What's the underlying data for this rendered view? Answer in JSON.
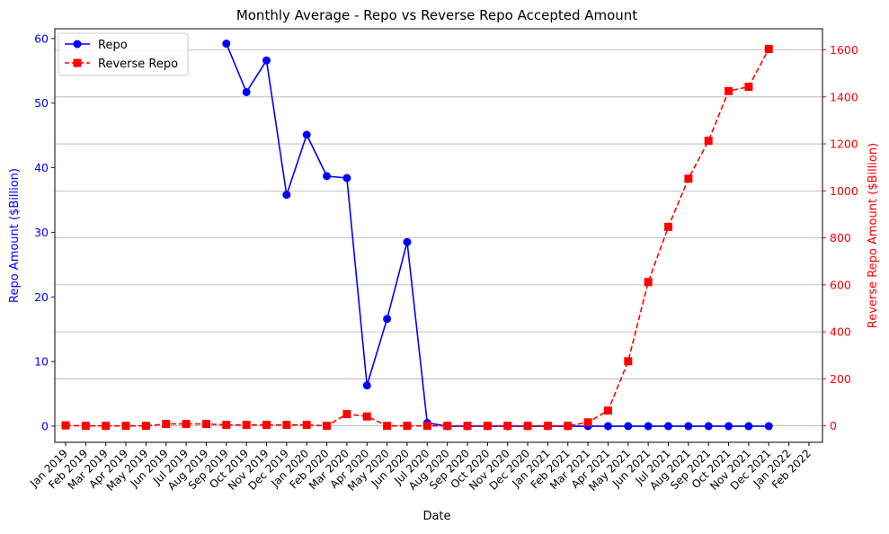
{
  "chart_data": {
    "type": "line",
    "title": "Monthly Average - Repo vs Reverse Repo Accepted Amount",
    "xlabel": "Date",
    "ylabel_left": "Repo Amount ($Billion)",
    "ylabel_right": "Reverse Repo Amount ($Billion)",
    "ylim_left": [
      -2.5,
      61.5
    ],
    "ylim_right": [
      -70,
      1690
    ],
    "yticks_left": [
      0,
      10,
      20,
      30,
      40,
      50,
      60
    ],
    "yticks_right": [
      0,
      200,
      400,
      600,
      800,
      1000,
      1200,
      1400,
      1600
    ],
    "x_tick_labels": [
      "Jan 2019",
      "Feb 2019",
      "Mar 2019",
      "Apr 2019",
      "May 2019",
      "Jun 2019",
      "Jul 2019",
      "Aug 2019",
      "Sep 2019",
      "Oct 2019",
      "Nov 2019",
      "Dec 2019",
      "Jan 2020",
      "Feb 2020",
      "Mar 2020",
      "Apr 2020",
      "May 2020",
      "Jun 2020",
      "Jul 2020",
      "Aug 2020",
      "Sep 2020",
      "Oct 2020",
      "Nov 2020",
      "Dec 2020",
      "Jan 2021",
      "Feb 2021",
      "Mar 2021",
      "Apr 2021",
      "May 2021",
      "Jun 2021",
      "Jul 2021",
      "Aug 2021",
      "Sep 2021",
      "Oct 2021",
      "Nov 2021",
      "Dec 2021",
      "Jan 2022",
      "Feb 2022"
    ],
    "grid": "horizontal, right axis",
    "legend_position": "top-left",
    "colors": {
      "repo": "#0000ff",
      "reverse_repo": "#ff0000"
    },
    "series": [
      {
        "name": "Repo",
        "axis": "left",
        "style": "solid-circle",
        "dates": [
          "Sep 2019",
          "Oct 2019",
          "Nov 2019",
          "Dec 2019",
          "Jan 2020",
          "Feb 2020",
          "Mar 2020",
          "Apr 2020",
          "May 2020",
          "Jun 2020",
          "Jul 2020",
          "Aug 2020",
          "Sep 2020",
          "Oct 2020",
          "Nov 2020",
          "Dec 2020",
          "Jan 2021",
          "Feb 2021",
          "Mar 2021",
          "Apr 2021",
          "May 2021",
          "Jun 2021",
          "Jul 2021",
          "Aug 2021",
          "Sep 2021",
          "Oct 2021",
          "Nov 2021",
          "Dec 2021"
        ],
        "values": [
          59.2,
          51.7,
          56.6,
          35.8,
          45.1,
          38.7,
          38.4,
          6.3,
          16.6,
          28.5,
          0.5,
          0.0,
          0.0,
          0.0,
          0.0,
          0.0,
          0.0,
          0.0,
          0.0,
          0.0,
          0.0,
          0.0,
          0.0,
          0.0,
          0.0,
          0.0,
          0.0,
          0.0
        ]
      },
      {
        "name": "Reverse Repo",
        "axis": "right",
        "style": "dashed-square",
        "dates": [
          "Jan 2019",
          "Feb 2019",
          "Mar 2019",
          "Apr 2019",
          "May 2019",
          "Jun 2019",
          "Jul 2019",
          "Aug 2019",
          "Sep 2019",
          "Oct 2019",
          "Nov 2019",
          "Dec 2019",
          "Jan 2020",
          "Feb 2020",
          "Mar 2020",
          "Apr 2020",
          "May 2020",
          "Jun 2020",
          "Jul 2020",
          "Aug 2020",
          "Sep 2020",
          "Oct 2020",
          "Nov 2020",
          "Dec 2020",
          "Jan 2021",
          "Feb 2021",
          "Mar 2021",
          "Apr 2021",
          "May 2021",
          "Jun 2021",
          "Jul 2021",
          "Aug 2021",
          "Sep 2021",
          "Oct 2021",
          "Nov 2021",
          "Dec 2021"
        ],
        "values": [
          2,
          0,
          0,
          0,
          0,
          8,
          8,
          8,
          4,
          4,
          4,
          4,
          4,
          0,
          50,
          40,
          0,
          0,
          0,
          0,
          0,
          0,
          0,
          0,
          0,
          0,
          15,
          65,
          275,
          612,
          847,
          1052,
          1213,
          1425,
          1443,
          1604
        ]
      }
    ]
  }
}
